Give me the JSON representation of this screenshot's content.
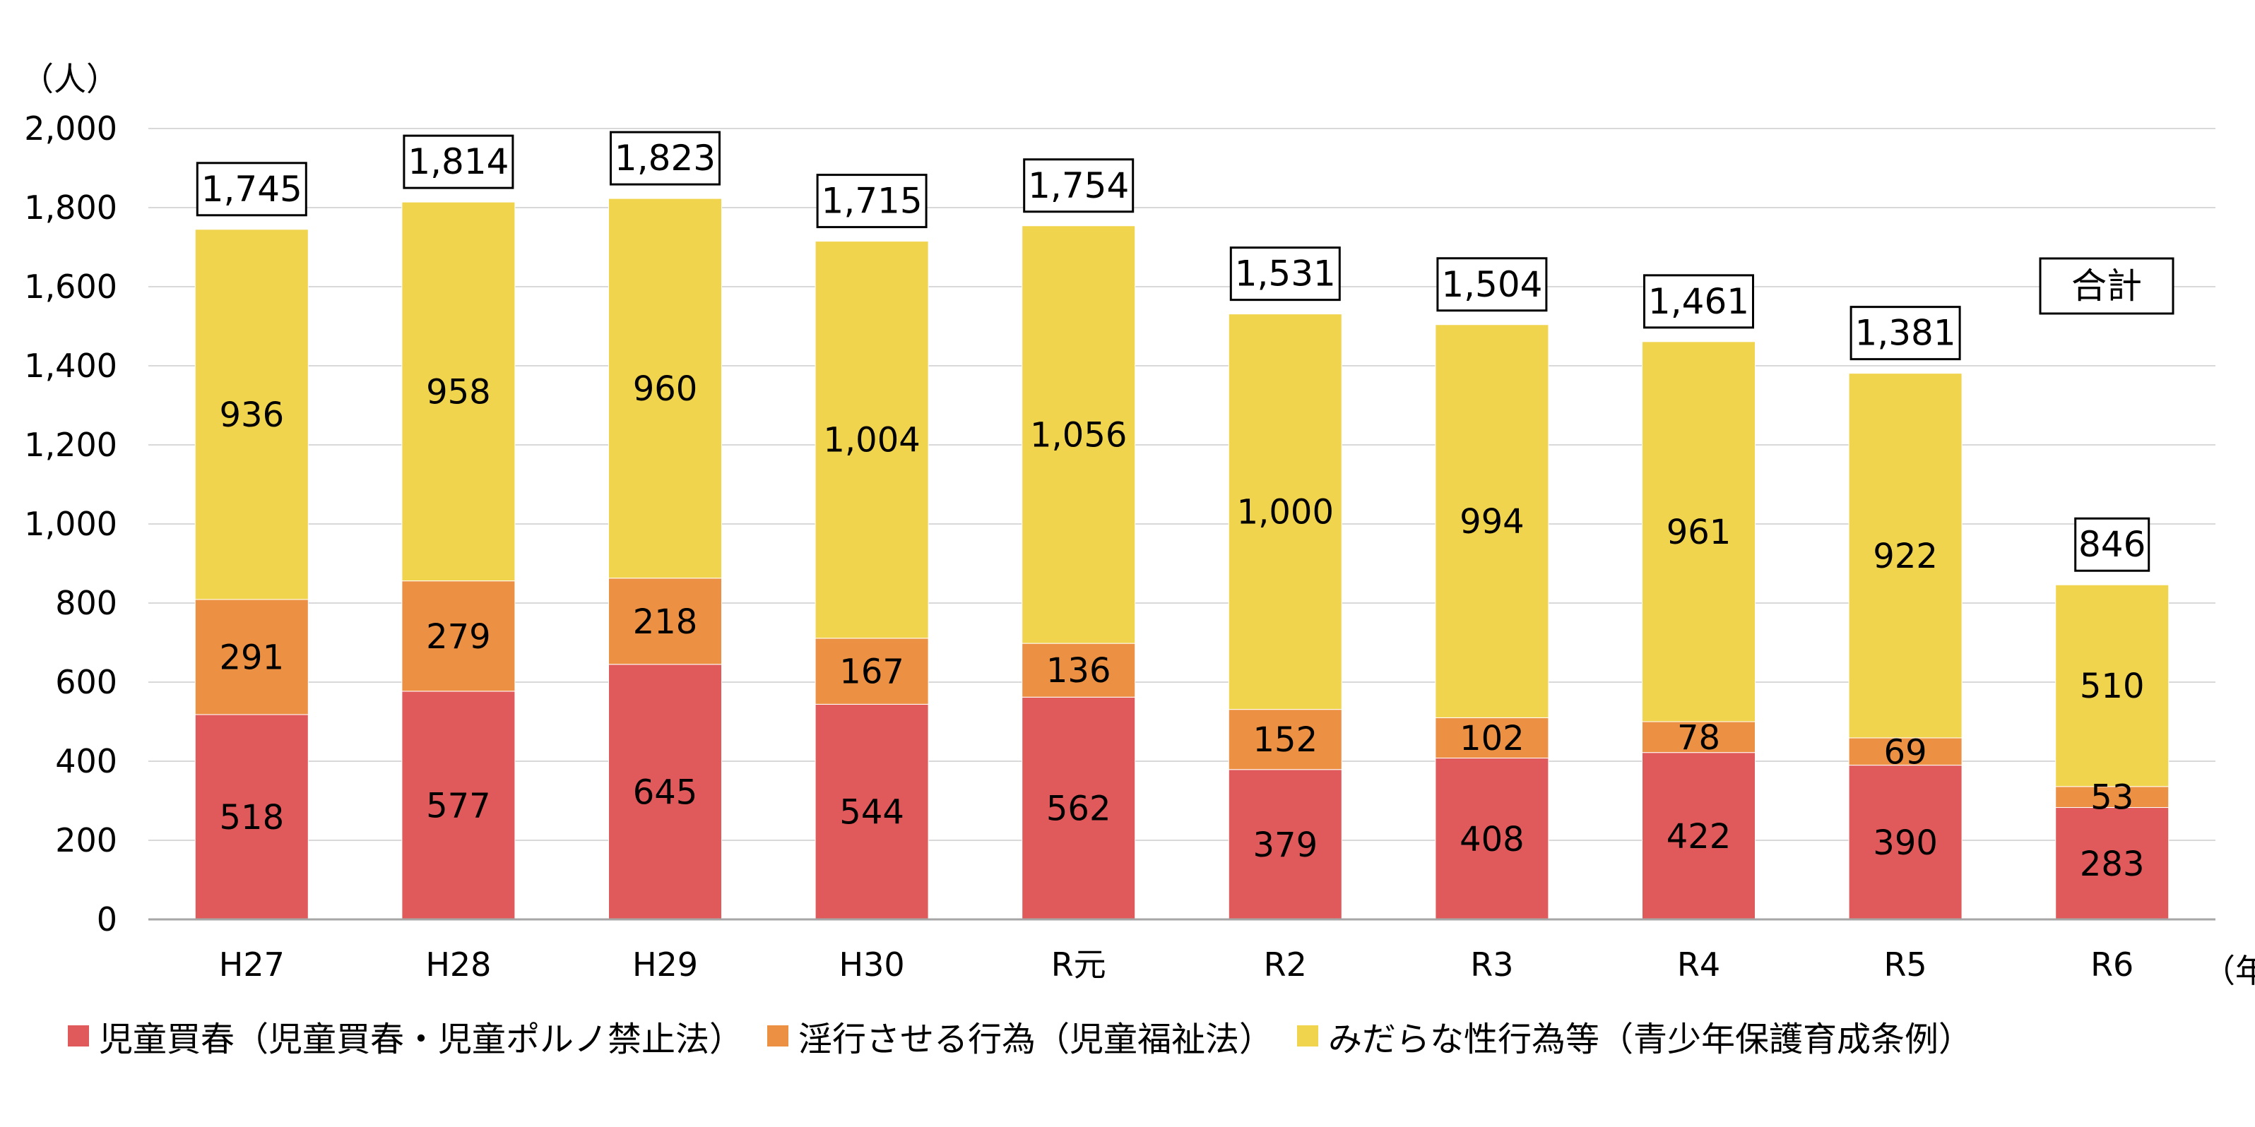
{
  "chart_data": {
    "type": "bar",
    "stacked": true,
    "y_unit_label": "（人）",
    "x_unit_label": "（年）",
    "ylim": [
      0,
      2000
    ],
    "yticks": [
      "0",
      "200",
      "400",
      "600",
      "800",
      "1,000",
      "1,200",
      "1,400",
      "1,600",
      "1,800",
      "2,000"
    ],
    "grid": true,
    "categories": [
      "H27",
      "H28",
      "H29",
      "H30",
      "R元",
      "R2",
      "R3",
      "R4",
      "R5",
      "R6"
    ],
    "series": [
      {
        "name": "児童買春（児童買春・児童ポルノ禁止法）",
        "color": "#e05a5c",
        "values": [
          518,
          577,
          645,
          544,
          562,
          379,
          408,
          422,
          390,
          283
        ]
      },
      {
        "name": "淫行させる行為（児童福祉法）",
        "color": "#ec9043",
        "values": [
          291,
          279,
          218,
          167,
          136,
          152,
          102,
          78,
          69,
          53
        ]
      },
      {
        "name": "みだらな性行為等（青少年保護育成条例）",
        "color": "#f1d44e",
        "values": [
          936,
          958,
          960,
          1004,
          1056,
          1000,
          994,
          961,
          922,
          510
        ]
      }
    ],
    "segment_labels": [
      [
        "518",
        "577",
        "645",
        "544",
        "562",
        "379",
        "408",
        "422",
        "390",
        "283"
      ],
      [
        "291",
        "279",
        "218",
        "167",
        "136",
        "152",
        "102",
        "78",
        "69",
        "53"
      ],
      [
        "936",
        "958",
        "960",
        "1,004",
        "1,056",
        "1,000",
        "994",
        "961",
        "922",
        "510"
      ]
    ],
    "totals": [
      1745,
      1814,
      1823,
      1715,
      1754,
      1531,
      1504,
      1461,
      1381,
      846
    ],
    "total_labels": [
      "1,745",
      "1,814",
      "1,823",
      "1,715",
      "1,754",
      "1,531",
      "1,504",
      "1,461",
      "1,381",
      "846"
    ],
    "totals_key_label": "合計",
    "legend_position": "bottom"
  },
  "colors": {
    "grid": "#d9d9d9",
    "axis": "#a6a6a6"
  }
}
